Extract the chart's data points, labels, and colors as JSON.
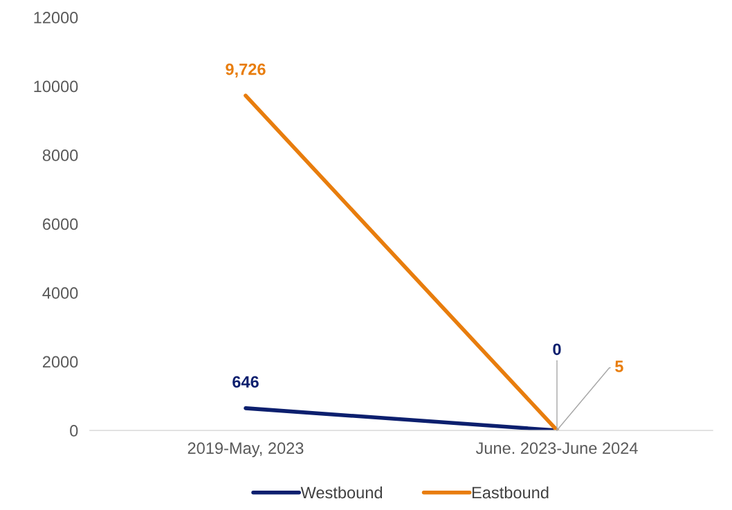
{
  "chart_data": {
    "type": "line",
    "categories": [
      "2019-May, 2023",
      "June. 2023-June 2024"
    ],
    "series": [
      {
        "name": "Westbound",
        "color": "#0c1f6e",
        "values": [
          646,
          0
        ],
        "value_labels": [
          "646",
          "0"
        ]
      },
      {
        "name": "Eastbound",
        "color": "#e87d0d",
        "values": [
          9726,
          5
        ],
        "value_labels": [
          "9,726",
          "5"
        ]
      }
    ],
    "ylim": [
      0,
      12000
    ],
    "yticks": [
      0,
      2000,
      4000,
      6000,
      8000,
      10000,
      12000
    ],
    "grid": false,
    "legend": "bottom",
    "marker": "none",
    "line_style": "solid"
  }
}
